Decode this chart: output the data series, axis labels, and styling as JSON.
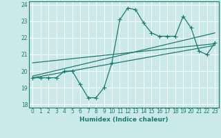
{
  "xlabel": "Humidex (Indice chaleur)",
  "bg_color": "#cce9e9",
  "grid_color": "#ffffff",
  "line_color": "#1a7a6e",
  "xlim": [
    -0.5,
    23.5
  ],
  "ylim": [
    17.8,
    24.2
  ],
  "xticks": [
    0,
    1,
    2,
    3,
    4,
    5,
    6,
    7,
    8,
    9,
    10,
    11,
    12,
    13,
    14,
    15,
    16,
    17,
    18,
    19,
    20,
    21,
    22,
    23
  ],
  "yticks": [
    18,
    19,
    20,
    21,
    22,
    23,
    24
  ],
  "data_x": [
    0,
    1,
    2,
    3,
    4,
    5,
    6,
    7,
    8,
    9,
    10,
    11,
    12,
    13,
    14,
    15,
    16,
    17,
    18,
    19,
    20,
    21,
    22,
    23
  ],
  "data_y": [
    19.6,
    19.6,
    19.6,
    19.6,
    20.0,
    20.0,
    19.2,
    18.4,
    18.4,
    19.0,
    20.5,
    23.1,
    23.8,
    23.7,
    22.9,
    22.3,
    22.1,
    22.1,
    22.1,
    23.3,
    22.6,
    21.2,
    21.0,
    21.7
  ],
  "trend1_x": [
    0,
    23
  ],
  "trend1_y": [
    19.6,
    21.55
  ],
  "trend2_x": [
    0,
    23
  ],
  "trend2_y": [
    19.7,
    22.3
  ],
  "trend3_x": [
    0,
    23
  ],
  "trend3_y": [
    20.5,
    21.65
  ]
}
